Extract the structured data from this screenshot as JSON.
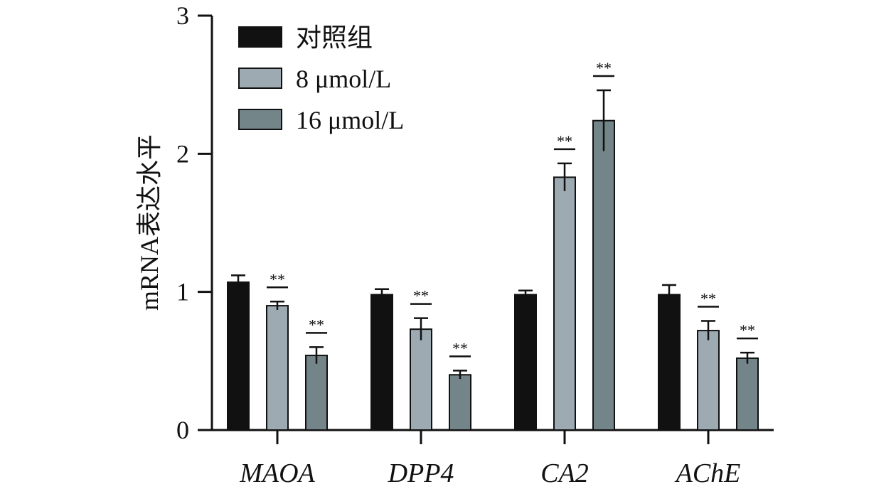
{
  "chart_data": {
    "type": "bar",
    "ylabel": "mRNA表达水平",
    "xlabel": "",
    "ylim": [
      0,
      3
    ],
    "yticks": [
      "0",
      "1",
      "2",
      "3"
    ],
    "categories": [
      "MAOA",
      "DPP4",
      "CA2",
      "AChE"
    ],
    "grid": false,
    "legend_position": "top-left",
    "series": [
      {
        "name": "对照组",
        "color": "#111111",
        "values": [
          1.07,
          0.98,
          0.98,
          0.98
        ],
        "errors": [
          0.05,
          0.04,
          0.03,
          0.07
        ],
        "significance": [
          "",
          "",
          "",
          ""
        ]
      },
      {
        "name": "8 μmol/L",
        "color": "#9eaab2",
        "values": [
          0.9,
          0.73,
          1.83,
          0.72
        ],
        "errors": [
          0.03,
          0.08,
          0.1,
          0.07
        ],
        "significance": [
          "**",
          "**",
          "**",
          "**"
        ]
      },
      {
        "name": "16 μmol/L",
        "color": "#738589",
        "values": [
          0.54,
          0.4,
          2.24,
          0.52
        ],
        "errors": [
          0.06,
          0.03,
          0.22,
          0.04
        ],
        "significance": [
          "**",
          "**",
          "**",
          "**"
        ]
      }
    ]
  }
}
